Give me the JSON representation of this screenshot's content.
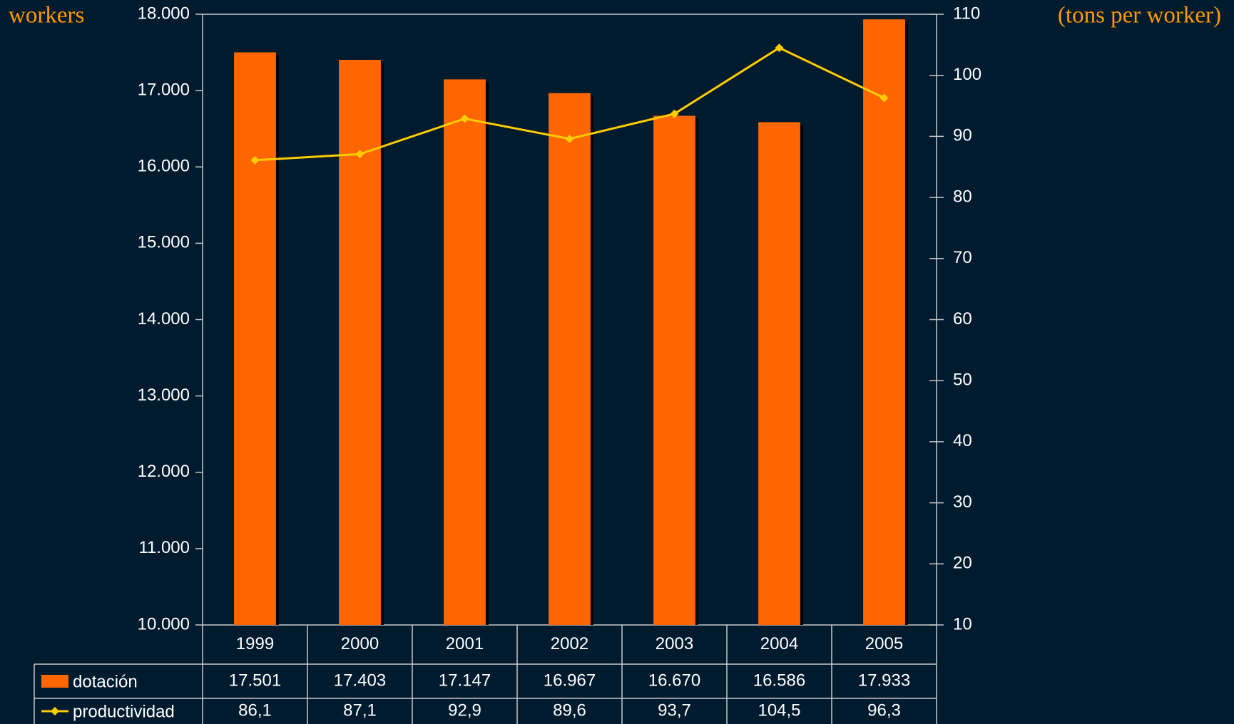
{
  "chart_data": {
    "type": "bar",
    "y_label": "workers",
    "y2_label": "(tons per worker)",
    "categories": [
      "1999",
      "2000",
      "2001",
      "2002",
      "2003",
      "2004",
      "2005"
    ],
    "series": [
      {
        "name": "dotación",
        "color": "#ff6600",
        "type": "bar",
        "values": [
          17501,
          17403,
          17147,
          16967,
          16670,
          16586,
          17933
        ],
        "value_labels": [
          "17.501",
          "17.403",
          "17.147",
          "16.967",
          "16.670",
          "16.586",
          "17.933"
        ]
      },
      {
        "name": "productividad",
        "color": "#ffcc00",
        "type": "line",
        "axis": "y2",
        "values": [
          86.1,
          87.1,
          92.9,
          89.6,
          93.7,
          104.5,
          96.3
        ],
        "value_labels": [
          "86,1",
          "87,1",
          "92,9",
          "89,6",
          "93,7",
          "104,5",
          "96,3"
        ]
      }
    ],
    "ylim": [
      10000,
      18000
    ],
    "yticks": [
      {
        "value": 10000,
        "label": "10.000"
      },
      {
        "value": 11000,
        "label": "11.000"
      },
      {
        "value": 12000,
        "label": "12.000"
      },
      {
        "value": 13000,
        "label": "13.000"
      },
      {
        "value": 14000,
        "label": "14.000"
      },
      {
        "value": 15000,
        "label": "15.000"
      },
      {
        "value": 16000,
        "label": "16.000"
      },
      {
        "value": 17000,
        "label": "17.000"
      },
      {
        "value": 18000,
        "label": "18.000"
      }
    ],
    "y2lim": [
      10,
      110
    ],
    "y2ticks": [
      10,
      20,
      30,
      40,
      50,
      60,
      70,
      80,
      90,
      100,
      110
    ]
  }
}
